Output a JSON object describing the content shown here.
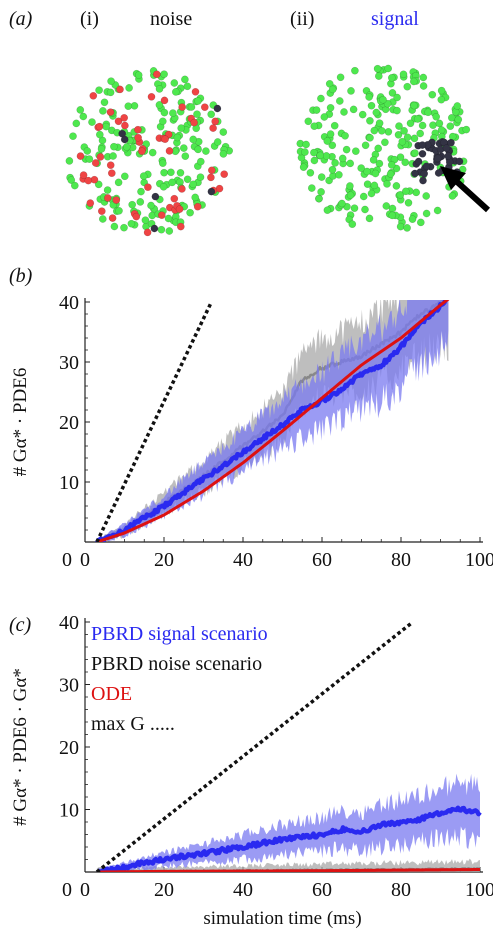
{
  "colors": {
    "signal": "#2a2af0",
    "signal_band": "#7a7af0",
    "noise_band": "#a8a8a8",
    "ode": "#dd1111",
    "max": "#111111",
    "green": "#4ee84e",
    "red": "#ef4444",
    "black_dot": "#333344"
  },
  "panel_a": {
    "label": "(a)",
    "i_label": "(i)",
    "i_title": "noise",
    "ii_label": "(ii)",
    "ii_title": "signal",
    "green_count_i": 200,
    "red_count_i": 60,
    "black_count_i": 6,
    "green_count_ii": 250,
    "black_count_ii": 45,
    "arrow": "arrow-pointing-to-cluster"
  },
  "chart_data": [
    {
      "id": "b",
      "label": "(b)",
      "type": "line",
      "ylabel": "# Gα* · PDE6",
      "xlabel": "",
      "xlim": [
        0,
        100
      ],
      "ylim": [
        0,
        40
      ],
      "xticks": [
        0,
        20,
        40,
        60,
        80,
        100
      ],
      "yticks": [
        10,
        20,
        30,
        40
      ],
      "series": [
        {
          "key": "max",
          "style": "dotted",
          "x": [
            3,
            32
          ],
          "y": [
            0,
            40
          ]
        },
        {
          "key": "signal",
          "style": "noisy-band",
          "x": [
            3,
            10,
            20,
            30,
            40,
            50,
            55,
            60,
            65,
            70,
            75,
            80,
            85,
            92
          ],
          "y": [
            0,
            2,
            6,
            10.5,
            15,
            19.5,
            22,
            23.5,
            25.5,
            28,
            29.5,
            32.5,
            36.5,
            40.5
          ]
        },
        {
          "key": "noise",
          "style": "noisy-band",
          "x": [
            3,
            10,
            20,
            30,
            40,
            50,
            55,
            60,
            65,
            70,
            75,
            80,
            85,
            92
          ],
          "y": [
            0,
            2,
            6.5,
            11,
            16,
            21,
            27,
            29,
            30,
            31,
            33,
            35,
            38,
            40.5
          ]
        },
        {
          "key": "ode",
          "style": "line",
          "x": [
            3,
            10,
            20,
            30,
            40,
            50,
            60,
            70,
            80,
            90,
            92
          ],
          "y": [
            0,
            1.5,
            4.5,
            8.5,
            13.2,
            18.5,
            24,
            29.5,
            34,
            39.5,
            40.5
          ]
        }
      ]
    },
    {
      "id": "c",
      "label": "(c)",
      "type": "line",
      "ylabel": "# Gα* · PDE6 · Gα*",
      "xlabel": "simulation time (ms)",
      "xlim": [
        0,
        100
      ],
      "ylim": [
        0,
        40
      ],
      "xticks": [
        0,
        20,
        40,
        60,
        80,
        100
      ],
      "yticks": [
        10,
        20,
        30,
        40
      ],
      "legend_position": "top-left",
      "series": [
        {
          "key": "max",
          "name": "max G .....",
          "style": "dotted",
          "x": [
            3,
            83
          ],
          "y": [
            0,
            40
          ]
        },
        {
          "key": "signal",
          "name": "PBRD signal scenario",
          "style": "noisy-band",
          "x": [
            3,
            10,
            15,
            20,
            30,
            40,
            50,
            60,
            65,
            70,
            75,
            80,
            85,
            90,
            95,
            100
          ],
          "y": [
            0,
            0.8,
            1.5,
            2,
            3,
            4,
            5.2,
            6,
            6.8,
            6.5,
            7.5,
            8,
            8.5,
            9.5,
            10,
            9.5
          ]
        },
        {
          "key": "noise",
          "name": "PBRD noise scenario",
          "style": "flat-band",
          "x": [
            3,
            20,
            40,
            60,
            80,
            100
          ],
          "y": [
            0,
            0.1,
            0.2,
            0.3,
            0.4,
            0.5
          ]
        },
        {
          "key": "ode",
          "name": "ODE",
          "style": "line",
          "x": [
            3,
            20,
            40,
            60,
            80,
            100
          ],
          "y": [
            0,
            0.1,
            0.15,
            0.2,
            0.3,
            0.4
          ]
        }
      ]
    }
  ]
}
